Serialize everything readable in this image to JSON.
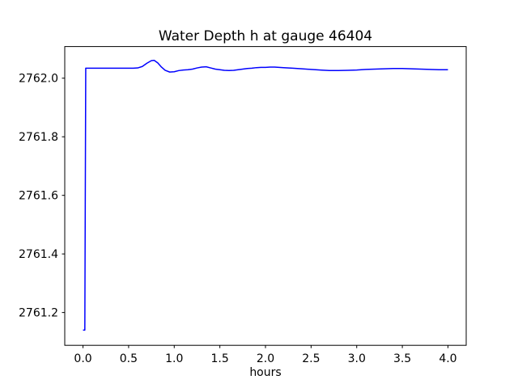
{
  "figure": {
    "background": "#ffffff",
    "text_color": "#000000",
    "spine_color": "#000000"
  },
  "chart_data": {
    "type": "line",
    "title": "Water Depth h at gauge 46404",
    "xlabel": "hours",
    "ylabel": "",
    "grid": false,
    "legend": null,
    "xlim": [
      -0.2,
      4.2
    ],
    "ylim": [
      2761.088,
      2762.108
    ],
    "x_ticks": {
      "values": [
        0.0,
        0.5,
        1.0,
        1.5,
        2.0,
        2.5,
        3.0,
        3.5,
        4.0
      ],
      "labels": [
        "0.0",
        "0.5",
        "1.0",
        "1.5",
        "2.0",
        "2.5",
        "3.0",
        "3.5",
        "4.0"
      ]
    },
    "y_ticks": {
      "values": [
        2761.2,
        2761.4,
        2761.6,
        2761.8,
        2762.0
      ],
      "labels": [
        "2761.2",
        "2761.4",
        "2761.6",
        "2761.8",
        "2762.0"
      ]
    },
    "series": [
      {
        "name": "water depth h",
        "color": "#0000ff",
        "line_width": 1.5,
        "points": [
          [
            0.0,
            2761.14
          ],
          [
            0.02,
            2761.14
          ],
          [
            0.03,
            2762.034
          ],
          [
            0.1,
            2762.034
          ],
          [
            0.2,
            2762.034
          ],
          [
            0.3,
            2762.034
          ],
          [
            0.4,
            2762.034
          ],
          [
            0.5,
            2762.034
          ],
          [
            0.55,
            2762.034
          ],
          [
            0.6,
            2762.035
          ],
          [
            0.65,
            2762.04
          ],
          [
            0.7,
            2762.051
          ],
          [
            0.75,
            2762.06
          ],
          [
            0.78,
            2762.061
          ],
          [
            0.82,
            2762.052
          ],
          [
            0.86,
            2762.038
          ],
          [
            0.9,
            2762.027
          ],
          [
            0.95,
            2762.021
          ],
          [
            1.0,
            2762.022
          ],
          [
            1.05,
            2762.026
          ],
          [
            1.1,
            2762.028
          ],
          [
            1.15,
            2762.029
          ],
          [
            1.2,
            2762.031
          ],
          [
            1.25,
            2762.035
          ],
          [
            1.3,
            2762.038
          ],
          [
            1.35,
            2762.039
          ],
          [
            1.4,
            2762.035
          ],
          [
            1.45,
            2762.031
          ],
          [
            1.5,
            2762.029
          ],
          [
            1.55,
            2762.027
          ],
          [
            1.6,
            2762.026
          ],
          [
            1.65,
            2762.027
          ],
          [
            1.7,
            2762.029
          ],
          [
            1.75,
            2762.031
          ],
          [
            1.8,
            2762.033
          ],
          [
            1.85,
            2762.034
          ],
          [
            1.9,
            2762.036
          ],
          [
            1.95,
            2762.037
          ],
          [
            2.0,
            2762.037
          ],
          [
            2.05,
            2762.038
          ],
          [
            2.1,
            2762.038
          ],
          [
            2.15,
            2762.037
          ],
          [
            2.2,
            2762.036
          ],
          [
            2.3,
            2762.034
          ],
          [
            2.4,
            2762.032
          ],
          [
            2.5,
            2762.03
          ],
          [
            2.6,
            2762.028
          ],
          [
            2.7,
            2762.026
          ],
          [
            2.8,
            2762.026
          ],
          [
            2.9,
            2762.027
          ],
          [
            3.0,
            2762.028
          ],
          [
            3.1,
            2762.03
          ],
          [
            3.2,
            2762.031
          ],
          [
            3.3,
            2762.032
          ],
          [
            3.4,
            2762.033
          ],
          [
            3.5,
            2762.033
          ],
          [
            3.6,
            2762.032
          ],
          [
            3.7,
            2762.031
          ],
          [
            3.8,
            2762.03
          ],
          [
            3.9,
            2762.029
          ],
          [
            4.0,
            2762.029
          ]
        ]
      }
    ]
  }
}
